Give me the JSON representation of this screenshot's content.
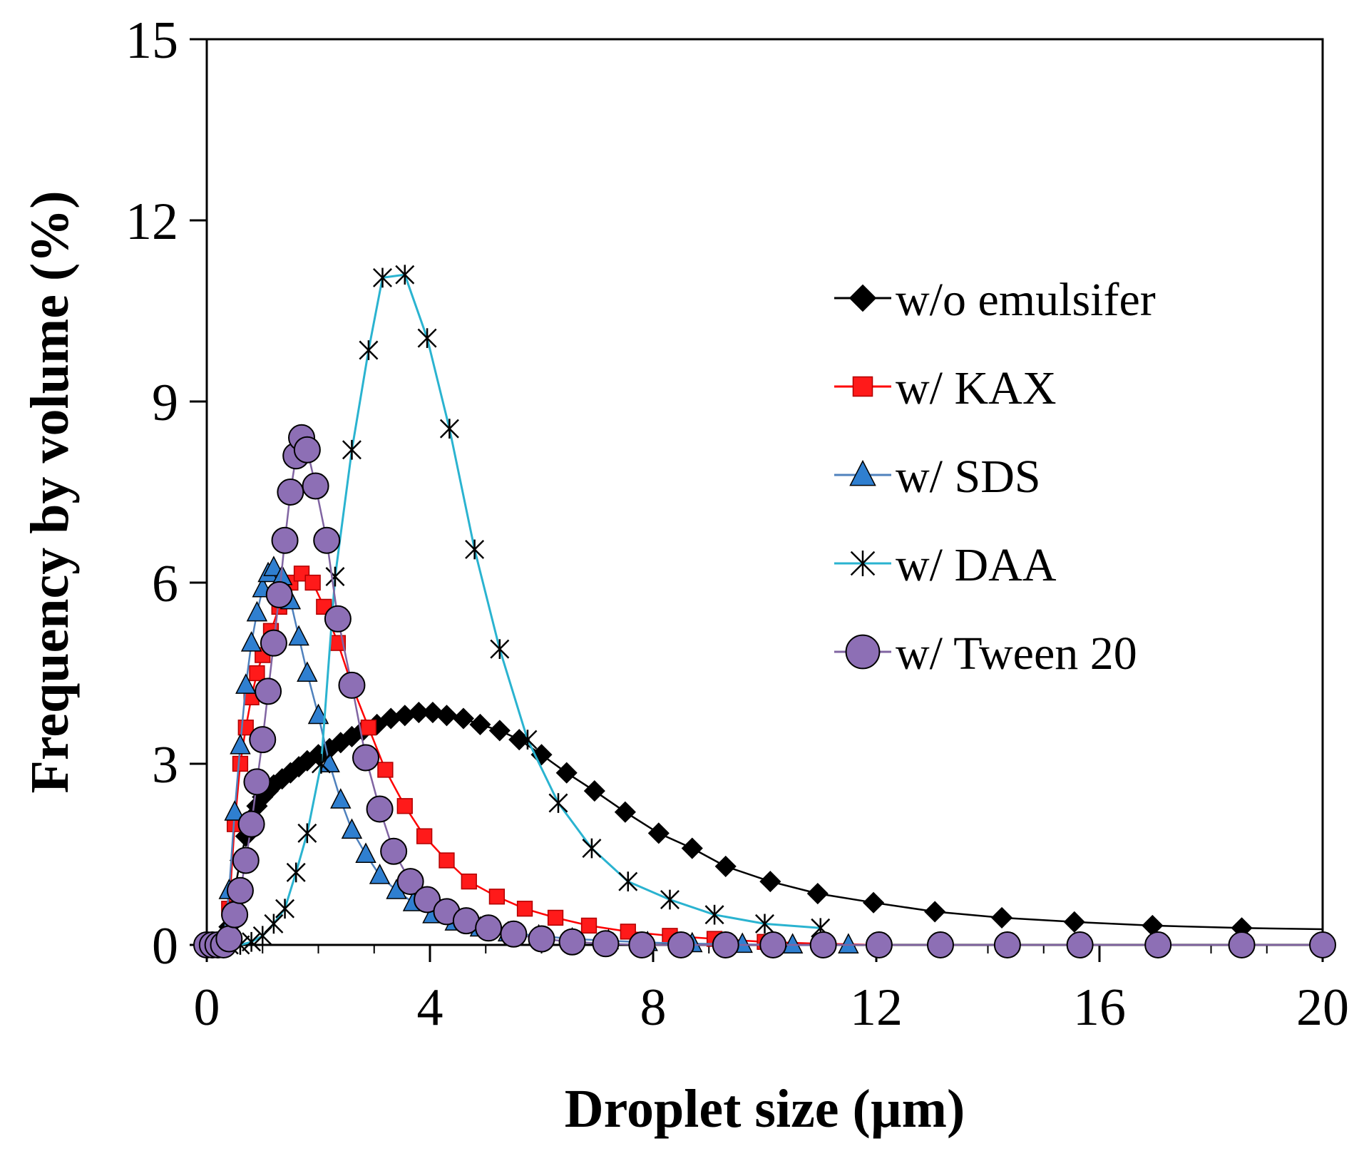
{
  "chart_data": {
    "type": "line",
    "title": "",
    "xlabel": "Droplet size (µm)",
    "ylabel": "Frequency by volume (%)",
    "xlim": [
      0,
      20
    ],
    "ylim": [
      0,
      15
    ],
    "xticks": [
      0,
      4,
      8,
      12,
      16,
      20
    ],
    "yticks": [
      0,
      3,
      6,
      9,
      12,
      15
    ],
    "grid": false,
    "legend_position": "top-right",
    "series": [
      {
        "name": "w/o emulsifer",
        "color": "#000000",
        "marker": "diamond",
        "x": [
          0,
          0.1,
          0.2,
          0.3,
          0.4,
          0.5,
          0.6,
          0.7,
          0.8,
          0.9,
          1.0,
          1.1,
          1.2,
          1.35,
          1.5,
          1.65,
          1.8,
          2.0,
          2.2,
          2.4,
          2.6,
          2.8,
          3.05,
          3.3,
          3.55,
          3.8,
          4.05,
          4.3,
          4.6,
          4.9,
          5.25,
          5.6,
          6.0,
          6.45,
          6.95,
          7.5,
          8.1,
          8.7,
          9.3,
          10.1,
          10.95,
          11.95,
          13.05,
          14.25,
          15.55,
          16.95,
          18.55,
          20.3
        ],
        "values": [
          0,
          0,
          0,
          0.05,
          0.3,
          0.9,
          1.4,
          1.8,
          2.1,
          2.3,
          2.45,
          2.55,
          2.65,
          2.75,
          2.85,
          2.95,
          3.05,
          3.15,
          3.25,
          3.35,
          3.45,
          3.55,
          3.65,
          3.75,
          3.8,
          3.85,
          3.85,
          3.8,
          3.75,
          3.65,
          3.55,
          3.4,
          3.15,
          2.85,
          2.55,
          2.2,
          1.85,
          1.6,
          1.3,
          1.05,
          0.85,
          0.7,
          0.55,
          0.45,
          0.38,
          0.32,
          0.28,
          0.26
        ]
      },
      {
        "name": "w/ KAX",
        "color": "#ff0000",
        "marker": "square",
        "x": [
          0,
          0.1,
          0.2,
          0.3,
          0.4,
          0.5,
          0.6,
          0.7,
          0.8,
          0.9,
          1.0,
          1.15,
          1.3,
          1.5,
          1.7,
          1.9,
          2.1,
          2.35,
          2.6,
          2.9,
          3.2,
          3.55,
          3.9,
          4.3,
          4.7,
          5.2,
          5.7,
          6.25,
          6.85,
          7.55,
          8.3,
          9.1,
          10.0,
          11.0,
          12.0
        ],
        "values": [
          0,
          0,
          0,
          0.05,
          0.6,
          2.0,
          3.0,
          3.6,
          4.1,
          4.5,
          4.8,
          5.2,
          5.6,
          6.0,
          6.15,
          6.0,
          5.6,
          5.0,
          4.3,
          3.6,
          2.9,
          2.3,
          1.8,
          1.4,
          1.05,
          0.8,
          0.6,
          0.45,
          0.32,
          0.22,
          0.15,
          0.1,
          0.05,
          0.02,
          0
        ]
      },
      {
        "name": "w/ SDS",
        "color": "#4f81bd",
        "marker": "triangle",
        "x": [
          0,
          0.1,
          0.2,
          0.3,
          0.4,
          0.5,
          0.6,
          0.7,
          0.8,
          0.9,
          1.0,
          1.1,
          1.2,
          1.35,
          1.5,
          1.65,
          1.8,
          2.0,
          2.2,
          2.4,
          2.6,
          2.85,
          3.1,
          3.4,
          3.7,
          4.05,
          4.45,
          4.9,
          5.4,
          5.95,
          6.55,
          7.2,
          7.9,
          8.7,
          9.6,
          10.5,
          11.5
        ],
        "values": [
          0,
          0,
          0,
          0.05,
          0.9,
          2.2,
          3.3,
          4.3,
          5.0,
          5.5,
          5.9,
          6.15,
          6.25,
          6.1,
          5.7,
          5.1,
          4.5,
          3.8,
          3.0,
          2.4,
          1.9,
          1.5,
          1.15,
          0.9,
          0.7,
          0.5,
          0.38,
          0.28,
          0.2,
          0.15,
          0.1,
          0.07,
          0.04,
          0.02,
          0.01,
          0,
          0
        ]
      },
      {
        "name": "w/ DAA",
        "color": "#4bacc6",
        "marker": "asterisk",
        "x": [
          0,
          0.2,
          0.4,
          0.6,
          0.8,
          1.0,
          1.2,
          1.4,
          1.6,
          1.8,
          2.05,
          2.3,
          2.6,
          2.9,
          3.15,
          3.55,
          3.95,
          4.35,
          4.8,
          5.25,
          5.75,
          6.3,
          6.9,
          7.55,
          8.3,
          9.1,
          10.0,
          11.0
        ],
        "values": [
          0,
          0,
          0,
          0,
          0.05,
          0.15,
          0.35,
          0.6,
          1.2,
          1.85,
          3.0,
          6.1,
          8.2,
          9.85,
          11.05,
          11.1,
          10.05,
          8.55,
          6.55,
          4.9,
          3.4,
          2.35,
          1.6,
          1.05,
          0.75,
          0.5,
          0.35,
          0.28
        ]
      },
      {
        "name": "w/ Tween 20",
        "color": "#8064a2",
        "marker": "circle",
        "x": [
          0,
          0.1,
          0.2,
          0.3,
          0.4,
          0.5,
          0.6,
          0.7,
          0.8,
          0.9,
          1.0,
          1.1,
          1.2,
          1.3,
          1.4,
          1.5,
          1.6,
          1.7,
          1.8,
          1.95,
          2.15,
          2.35,
          2.6,
          2.85,
          3.1,
          3.35,
          3.65,
          3.95,
          4.3,
          4.65,
          5.05,
          5.5,
          6.0,
          6.55,
          7.15,
          7.8,
          8.5,
          9.3,
          10.15,
          11.05,
          12.05,
          13.15,
          14.35,
          15.65,
          17.05,
          18.55,
          20
        ],
        "values": [
          0,
          0,
          0,
          0,
          0.1,
          0.5,
          0.9,
          1.4,
          2.0,
          2.7,
          3.4,
          4.2,
          5.0,
          5.8,
          6.7,
          7.5,
          8.1,
          8.4,
          8.2,
          7.6,
          6.7,
          5.4,
          4.3,
          3.1,
          2.25,
          1.55,
          1.05,
          0.75,
          0.55,
          0.4,
          0.28,
          0.18,
          0.1,
          0.05,
          0.02,
          0,
          0,
          0,
          0,
          0,
          0,
          0,
          0,
          0,
          0,
          0,
          0
        ]
      }
    ]
  }
}
